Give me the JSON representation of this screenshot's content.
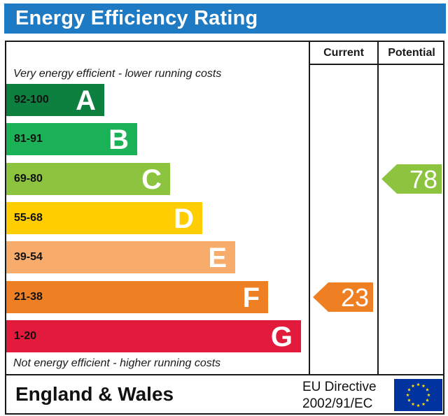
{
  "header": {
    "title": "Energy Efficiency Rating"
  },
  "columns": {
    "current": "Current",
    "potential": "Potential"
  },
  "notes": {
    "top": "Very energy efficient - lower running costs",
    "bottom": "Not energy efficient - higher running costs"
  },
  "chart_data": {
    "type": "bar",
    "title": "Energy Efficiency Rating",
    "bands": [
      {
        "range": "92-100",
        "letter": "A",
        "color": "#0d8040"
      },
      {
        "range": "81-91",
        "letter": "B",
        "color": "#1bb156"
      },
      {
        "range": "69-80",
        "letter": "C",
        "color": "#8cc33f"
      },
      {
        "range": "55-68",
        "letter": "D",
        "color": "#ffcd00"
      },
      {
        "range": "39-54",
        "letter": "E",
        "color": "#f7ac6b"
      },
      {
        "range": "21-38",
        "letter": "F",
        "color": "#ee8023"
      },
      {
        "range": "1-20",
        "letter": "G",
        "color": "#e21a3c"
      }
    ],
    "current": {
      "value": 23,
      "band": "F",
      "color": "#ee8023"
    },
    "potential": {
      "value": 78,
      "band": "C",
      "color": "#8cc33f"
    }
  },
  "footer": {
    "region": "England & Wales",
    "directive_line1": "EU Directive",
    "directive_line2": "2002/91/EC",
    "flag_icon": "eu-flag-icon",
    "flag_color": "#0033a0",
    "star_color": "#ffdd00"
  }
}
